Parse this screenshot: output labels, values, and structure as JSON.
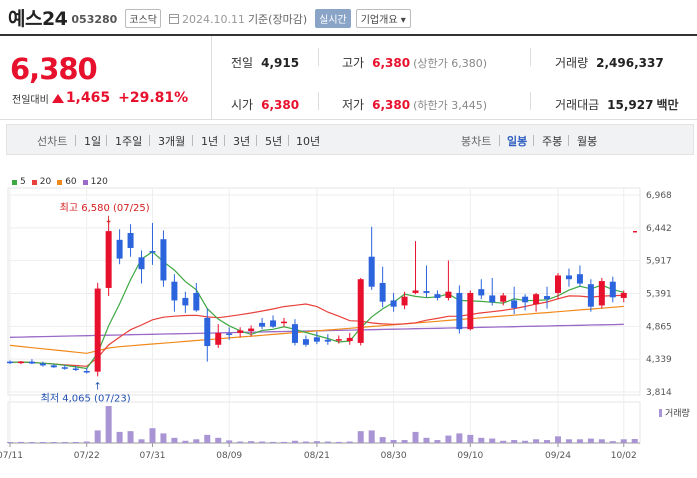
{
  "header": {
    "name": "예스24",
    "code": "053280",
    "market": "코스닥",
    "date": "2024.10.11",
    "basis": "기준(장마감)",
    "realtime": "실시간",
    "company_info": "기업개요"
  },
  "price": {
    "current": "6,380",
    "change_label": "전일대비",
    "change_value": "1,465",
    "change_pct": "+29.81%"
  },
  "stats": {
    "prev_close_label": "전일",
    "prev_close": "4,915",
    "open_label": "시가",
    "open": "6,380",
    "high_label": "고가",
    "high": "6,380",
    "high_limit": "(상한가 6,380)",
    "low_label": "저가",
    "low": "6,380",
    "low_limit": "(하한가 3,445)",
    "volume_label": "거래량",
    "volume": "2,496,337",
    "amount_label": "거래대금",
    "amount": "15,927",
    "amount_unit": "백만"
  },
  "toolbar": {
    "line_chart_label": "선차트",
    "line_periods": [
      "1일",
      "1주일",
      "3개월",
      "1년",
      "3년",
      "5년",
      "10년"
    ],
    "candle_label": "봉차트",
    "candle_periods": [
      "일봉",
      "주봉",
      "월봉"
    ],
    "candle_active": "일봉"
  },
  "colors": {
    "up": "#e8112d",
    "down": "#2b64dc",
    "ma5": "#3ea843",
    "ma20": "#e8403a",
    "ma60": "#f08a1c",
    "ma120": "#9b6ac8",
    "volume": "#a994d4"
  },
  "chart_data": {
    "type": "candlestick",
    "legend": [
      "5",
      "20",
      "60",
      "120"
    ],
    "ylim": [
      3814,
      6968
    ],
    "y_ticks": [
      "6,968",
      "6,442",
      "5,917",
      "5,391",
      "4,865",
      "4,339",
      "3,814"
    ],
    "x_tick_labels": [
      "07/11",
      "07/22",
      "07/31",
      "08/09",
      "08/21",
      "08/30",
      "09/10",
      "09/24",
      "10/02"
    ],
    "x_tick_index": [
      0,
      7,
      13,
      20,
      28,
      35,
      42,
      50,
      56
    ],
    "high_annotation": "최고 6,580 (07/25)",
    "low_annotation": "최저 4,065 (07/23)",
    "volume_label": "거래량",
    "candles": [
      {
        "o": 4300,
        "h": 4320,
        "l": 4260,
        "c": 4290
      },
      {
        "o": 4290,
        "h": 4310,
        "l": 4260,
        "c": 4300
      },
      {
        "o": 4300,
        "h": 4340,
        "l": 4260,
        "c": 4270
      },
      {
        "o": 4270,
        "h": 4300,
        "l": 4220,
        "c": 4240
      },
      {
        "o": 4240,
        "h": 4260,
        "l": 4200,
        "c": 4210
      },
      {
        "o": 4210,
        "h": 4250,
        "l": 4170,
        "c": 4190
      },
      {
        "o": 4190,
        "h": 4230,
        "l": 4150,
        "c": 4170
      },
      {
        "o": 4150,
        "h": 4200,
        "l": 4110,
        "c": 4140
      },
      {
        "o": 4140,
        "h": 5560,
        "l": 4065,
        "c": 5470
      },
      {
        "o": 5480,
        "h": 6580,
        "l": 5350,
        "c": 6390
      },
      {
        "o": 6250,
        "h": 6420,
        "l": 5860,
        "c": 5950
      },
      {
        "o": 6360,
        "h": 6500,
        "l": 5980,
        "c": 6120
      },
      {
        "o": 5970,
        "h": 6080,
        "l": 5550,
        "c": 5780
      },
      {
        "o": 6070,
        "h": 6520,
        "l": 5850,
        "c": 6050
      },
      {
        "o": 6260,
        "h": 6400,
        "l": 5500,
        "c": 5600
      },
      {
        "o": 5580,
        "h": 5700,
        "l": 5100,
        "c": 5280
      },
      {
        "o": 5320,
        "h": 5420,
        "l": 5080,
        "c": 5200
      },
      {
        "o": 5400,
        "h": 5560,
        "l": 5100,
        "c": 5120
      },
      {
        "o": 5000,
        "h": 5150,
        "l": 4300,
        "c": 4550
      },
      {
        "o": 4570,
        "h": 4900,
        "l": 4520,
        "c": 4760
      },
      {
        "o": 4750,
        "h": 4850,
        "l": 4650,
        "c": 4740
      },
      {
        "o": 4760,
        "h": 4850,
        "l": 4690,
        "c": 4800
      },
      {
        "o": 4790,
        "h": 4880,
        "l": 4700,
        "c": 4830
      },
      {
        "o": 4920,
        "h": 5000,
        "l": 4820,
        "c": 4860
      },
      {
        "o": 4960,
        "h": 5040,
        "l": 4840,
        "c": 4860
      },
      {
        "o": 4920,
        "h": 5000,
        "l": 4860,
        "c": 4940
      },
      {
        "o": 4900,
        "h": 4980,
        "l": 4560,
        "c": 4600
      },
      {
        "o": 4660,
        "h": 4720,
        "l": 4540,
        "c": 4570
      },
      {
        "o": 4690,
        "h": 4780,
        "l": 4580,
        "c": 4620
      },
      {
        "o": 4650,
        "h": 4740,
        "l": 4570,
        "c": 4620
      },
      {
        "o": 4640,
        "h": 4720,
        "l": 4590,
        "c": 4660
      },
      {
        "o": 4630,
        "h": 4760,
        "l": 4570,
        "c": 4680
      },
      {
        "o": 4600,
        "h": 5640,
        "l": 4560,
        "c": 5620
      },
      {
        "o": 5980,
        "h": 6460,
        "l": 5450,
        "c": 5500
      },
      {
        "o": 5560,
        "h": 5820,
        "l": 5170,
        "c": 5260
      },
      {
        "o": 5280,
        "h": 5400,
        "l": 5100,
        "c": 5180
      },
      {
        "o": 5200,
        "h": 5420,
        "l": 5140,
        "c": 5340
      },
      {
        "o": 5400,
        "h": 6230,
        "l": 5380,
        "c": 5440
      },
      {
        "o": 5430,
        "h": 5840,
        "l": 5330,
        "c": 5400
      },
      {
        "o": 5380,
        "h": 5440,
        "l": 5280,
        "c": 5320
      },
      {
        "o": 5320,
        "h": 5920,
        "l": 5280,
        "c": 5420
      },
      {
        "o": 5400,
        "h": 5520,
        "l": 4750,
        "c": 4820
      },
      {
        "o": 4820,
        "h": 5440,
        "l": 4800,
        "c": 5400
      },
      {
        "o": 5460,
        "h": 5620,
        "l": 5300,
        "c": 5360
      },
      {
        "o": 5360,
        "h": 5640,
        "l": 5200,
        "c": 5250
      },
      {
        "o": 5260,
        "h": 5400,
        "l": 5200,
        "c": 5360
      },
      {
        "o": 5280,
        "h": 5500,
        "l": 5060,
        "c": 5160
      },
      {
        "o": 5340,
        "h": 5380,
        "l": 5120,
        "c": 5250
      },
      {
        "o": 5220,
        "h": 5400,
        "l": 5100,
        "c": 5380
      },
      {
        "o": 5350,
        "h": 5500,
        "l": 5150,
        "c": 5300
      },
      {
        "o": 5400,
        "h": 5720,
        "l": 5300,
        "c": 5680
      },
      {
        "o": 5680,
        "h": 5790,
        "l": 5500,
        "c": 5620
      },
      {
        "o": 5700,
        "h": 5840,
        "l": 5500,
        "c": 5550
      },
      {
        "o": 5540,
        "h": 5620,
        "l": 5100,
        "c": 5180
      },
      {
        "o": 5200,
        "h": 5640,
        "l": 5150,
        "c": 5590
      },
      {
        "o": 5580,
        "h": 5660,
        "l": 5250,
        "c": 5330
      },
      {
        "o": 5320,
        "h": 5440,
        "l": 5250,
        "c": 5400
      }
    ]
  }
}
